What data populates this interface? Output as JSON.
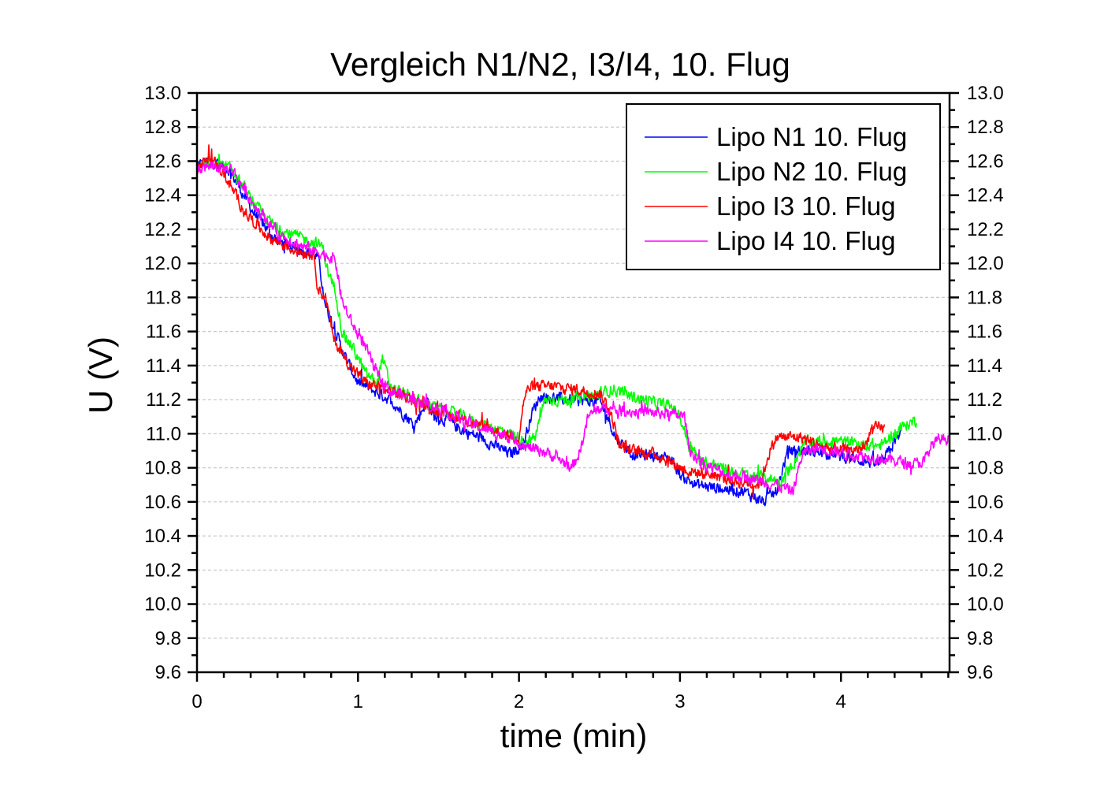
{
  "chart_data": {
    "type": "line",
    "title": "Vergleich N1/N2, I3/I4, 10. Flug",
    "xlabel": "time (min)",
    "ylabel": "U (V)",
    "xlim": [
      0,
      4.67
    ],
    "ylim": [
      9.6,
      13.0
    ],
    "x_ticks": [
      0,
      1,
      2,
      3,
      4
    ],
    "x_tick_labels": [
      "0",
      "1",
      "2",
      "3",
      "4"
    ],
    "x_minor_per_major": 5,
    "y_ticks": [
      9.6,
      9.8,
      10.0,
      10.2,
      10.4,
      10.6,
      10.8,
      11.0,
      11.2,
      11.4,
      11.6,
      11.8,
      12.0,
      12.2,
      12.4,
      12.6,
      12.8,
      13.0
    ],
    "y_tick_labels": [
      "9.6",
      "9.8",
      "10.0",
      "10.2",
      "10.4",
      "10.6",
      "10.8",
      "11.0",
      "11.2",
      "11.4",
      "11.6",
      "11.8",
      "12.0",
      "12.2",
      "12.4",
      "12.6",
      "12.8",
      "13.0"
    ],
    "right_axis_mirrored": true,
    "grid": "horizontal dashed at major y ticks",
    "legend_position": "top-right",
    "series": [
      {
        "name": "Lipo N1 10. Flug",
        "color": "#0000ff",
        "points": [
          [
            0,
            12.58
          ],
          [
            0.1,
            12.6
          ],
          [
            0.2,
            12.55
          ],
          [
            0.35,
            12.3
          ],
          [
            0.5,
            12.13
          ],
          [
            0.65,
            12.08
          ],
          [
            0.75,
            12.04
          ],
          [
            0.8,
            11.75
          ],
          [
            0.86,
            11.6
          ],
          [
            0.92,
            11.45
          ],
          [
            1.0,
            11.3
          ],
          [
            1.1,
            11.25
          ],
          [
            1.2,
            11.2
          ],
          [
            1.3,
            11.1
          ],
          [
            1.35,
            11.05
          ],
          [
            1.43,
            11.2
          ],
          [
            1.47,
            11.1
          ],
          [
            1.55,
            11.08
          ],
          [
            1.65,
            11.02
          ],
          [
            1.75,
            10.98
          ],
          [
            1.85,
            10.93
          ],
          [
            1.95,
            10.88
          ],
          [
            2.03,
            10.95
          ],
          [
            2.08,
            11.12
          ],
          [
            2.13,
            11.22
          ],
          [
            2.3,
            11.2
          ],
          [
            2.5,
            11.19
          ],
          [
            2.55,
            11.1
          ],
          [
            2.6,
            10.98
          ],
          [
            2.7,
            10.88
          ],
          [
            2.85,
            10.87
          ],
          [
            2.95,
            10.85
          ],
          [
            3.0,
            10.76
          ],
          [
            3.1,
            10.7
          ],
          [
            3.25,
            10.68
          ],
          [
            3.4,
            10.66
          ],
          [
            3.52,
            10.6
          ],
          [
            3.6,
            10.66
          ],
          [
            3.67,
            10.9
          ],
          [
            3.8,
            10.9
          ],
          [
            3.95,
            10.88
          ],
          [
            4.1,
            10.85
          ],
          [
            4.25,
            10.82
          ],
          [
            4.3,
            10.9
          ],
          [
            4.38,
            11.02
          ]
        ]
      },
      {
        "name": "Lipo N2 10. Flug",
        "color": "#00ff00",
        "points": [
          [
            0,
            12.57
          ],
          [
            0.1,
            12.59
          ],
          [
            0.22,
            12.55
          ],
          [
            0.35,
            12.35
          ],
          [
            0.5,
            12.2
          ],
          [
            0.65,
            12.15
          ],
          [
            0.78,
            12.1
          ],
          [
            0.82,
            11.92
          ],
          [
            0.86,
            11.85
          ],
          [
            0.9,
            11.6
          ],
          [
            0.97,
            11.5
          ],
          [
            1.05,
            11.35
          ],
          [
            1.12,
            11.3
          ],
          [
            1.15,
            11.45
          ],
          [
            1.2,
            11.28
          ],
          [
            1.35,
            11.2
          ],
          [
            1.5,
            11.15
          ],
          [
            1.65,
            11.1
          ],
          [
            1.8,
            11.05
          ],
          [
            1.95,
            11.0
          ],
          [
            2.05,
            10.95
          ],
          [
            2.1,
            10.98
          ],
          [
            2.16,
            11.2
          ],
          [
            2.3,
            11.2
          ],
          [
            2.45,
            11.22
          ],
          [
            2.58,
            11.26
          ],
          [
            2.7,
            11.22
          ],
          [
            2.85,
            11.18
          ],
          [
            2.95,
            11.16
          ],
          [
            3.0,
            11.1
          ],
          [
            3.05,
            10.95
          ],
          [
            3.12,
            10.85
          ],
          [
            3.25,
            10.8
          ],
          [
            3.4,
            10.76
          ],
          [
            3.55,
            10.74
          ],
          [
            3.62,
            10.72
          ],
          [
            3.7,
            10.82
          ],
          [
            3.78,
            10.95
          ],
          [
            3.95,
            10.96
          ],
          [
            4.1,
            10.94
          ],
          [
            4.25,
            10.93
          ],
          [
            4.33,
            11.0
          ],
          [
            4.4,
            11.05
          ],
          [
            4.47,
            11.08
          ]
        ]
      },
      {
        "name": "Lipo I3 10. Flug",
        "color": "#ff0000",
        "points": [
          [
            0,
            12.56
          ],
          [
            0.08,
            12.62
          ],
          [
            0.15,
            12.55
          ],
          [
            0.3,
            12.3
          ],
          [
            0.45,
            12.15
          ],
          [
            0.6,
            12.08
          ],
          [
            0.73,
            12.05
          ],
          [
            0.75,
            11.85
          ],
          [
            0.8,
            11.8
          ],
          [
            0.85,
            11.55
          ],
          [
            0.95,
            11.4
          ],
          [
            1.05,
            11.3
          ],
          [
            1.2,
            11.25
          ],
          [
            1.3,
            11.22
          ],
          [
            1.45,
            11.15
          ],
          [
            1.6,
            11.1
          ],
          [
            1.75,
            11.05
          ],
          [
            1.9,
            11.0
          ],
          [
            2.0,
            10.98
          ],
          [
            2.03,
            11.2
          ],
          [
            2.06,
            11.27
          ],
          [
            2.2,
            11.28
          ],
          [
            2.35,
            11.26
          ],
          [
            2.5,
            11.24
          ],
          [
            2.56,
            11.15
          ],
          [
            2.62,
            10.95
          ],
          [
            2.7,
            10.9
          ],
          [
            2.85,
            10.88
          ],
          [
            2.95,
            10.83
          ],
          [
            3.05,
            10.78
          ],
          [
            3.2,
            10.76
          ],
          [
            3.35,
            10.72
          ],
          [
            3.5,
            10.7
          ],
          [
            3.55,
            10.88
          ],
          [
            3.6,
            10.98
          ],
          [
            3.75,
            10.98
          ],
          [
            3.9,
            10.92
          ],
          [
            4.05,
            10.9
          ],
          [
            4.15,
            10.92
          ],
          [
            4.18,
            11.02
          ],
          [
            4.27,
            11.04
          ]
        ]
      },
      {
        "name": "Lipo I4 10. Flug",
        "color": "#ff00ff",
        "points": [
          [
            0,
            12.56
          ],
          [
            0.1,
            12.57
          ],
          [
            0.22,
            12.55
          ],
          [
            0.35,
            12.35
          ],
          [
            0.5,
            12.18
          ],
          [
            0.65,
            12.1
          ],
          [
            0.8,
            12.05
          ],
          [
            0.86,
            12.02
          ],
          [
            0.9,
            11.78
          ],
          [
            0.96,
            11.65
          ],
          [
            1.05,
            11.5
          ],
          [
            1.12,
            11.35
          ],
          [
            1.2,
            11.25
          ],
          [
            1.35,
            11.2
          ],
          [
            1.5,
            11.15
          ],
          [
            1.65,
            11.08
          ],
          [
            1.8,
            11.02
          ],
          [
            1.95,
            10.98
          ],
          [
            2.05,
            10.92
          ],
          [
            2.15,
            10.9
          ],
          [
            2.25,
            10.85
          ],
          [
            2.33,
            10.8
          ],
          [
            2.38,
            10.9
          ],
          [
            2.43,
            11.1
          ],
          [
            2.5,
            11.15
          ],
          [
            2.7,
            11.13
          ],
          [
            2.9,
            11.12
          ],
          [
            3.03,
            11.1
          ],
          [
            3.06,
            10.9
          ],
          [
            3.15,
            10.82
          ],
          [
            3.3,
            10.76
          ],
          [
            3.45,
            10.74
          ],
          [
            3.6,
            10.7
          ],
          [
            3.7,
            10.66
          ],
          [
            3.76,
            10.88
          ],
          [
            3.85,
            10.92
          ],
          [
            4.0,
            10.89
          ],
          [
            4.2,
            10.86
          ],
          [
            4.35,
            10.84
          ],
          [
            4.45,
            10.82
          ],
          [
            4.52,
            10.84
          ],
          [
            4.56,
            10.93
          ],
          [
            4.62,
            10.97
          ],
          [
            4.67,
            10.97
          ]
        ]
      }
    ]
  }
}
